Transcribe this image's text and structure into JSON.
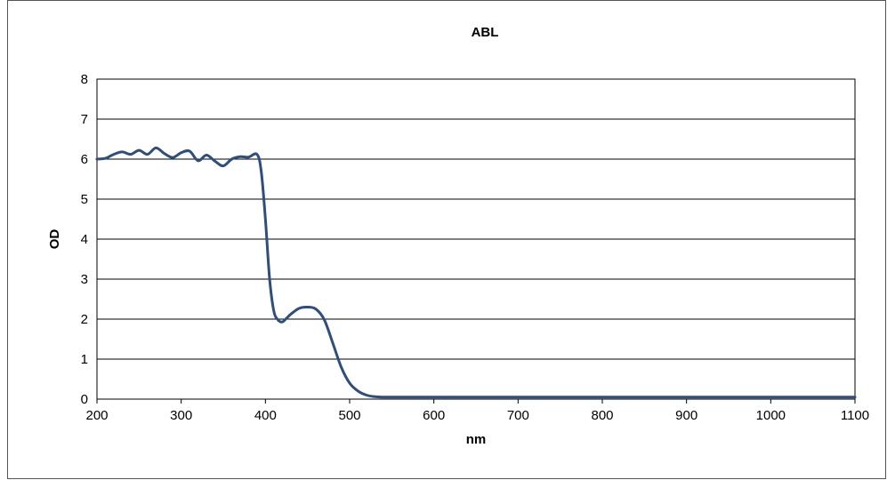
{
  "chart_data": {
    "type": "line",
    "title": "ABL",
    "xlabel": "nm",
    "ylabel": "OD",
    "xlim": [
      200,
      1100
    ],
    "ylim": [
      0,
      8
    ],
    "xticks": [
      200,
      300,
      400,
      500,
      600,
      700,
      800,
      900,
      1000,
      1100
    ],
    "yticks": [
      0,
      1,
      2,
      3,
      4,
      5,
      6,
      7,
      8
    ],
    "grid": "horizontal",
    "legend": "none",
    "series": [
      {
        "color": "#2e4e7e",
        "x": [
          200,
          210,
          220,
          230,
          240,
          250,
          260,
          270,
          280,
          290,
          300,
          310,
          320,
          330,
          340,
          350,
          360,
          370,
          380,
          390,
          395,
          400,
          405,
          410,
          415,
          420,
          425,
          430,
          440,
          450,
          460,
          470,
          480,
          490,
          500,
          510,
          520,
          530,
          540,
          550,
          560,
          580,
          600,
          650,
          700,
          800,
          900,
          1000,
          1100
        ],
        "y": [
          6.0,
          6.02,
          6.12,
          6.18,
          6.12,
          6.22,
          6.12,
          6.28,
          6.14,
          6.04,
          6.16,
          6.2,
          5.96,
          6.1,
          5.95,
          5.83,
          6.0,
          6.06,
          6.05,
          6.12,
          5.7,
          4.5,
          3.0,
          2.2,
          1.98,
          1.93,
          2.02,
          2.12,
          2.27,
          2.3,
          2.25,
          1.98,
          1.4,
          0.8,
          0.4,
          0.2,
          0.1,
          0.06,
          0.05,
          0.05,
          0.05,
          0.05,
          0.05,
          0.05,
          0.05,
          0.05,
          0.05,
          0.05,
          0.05
        ]
      }
    ]
  }
}
